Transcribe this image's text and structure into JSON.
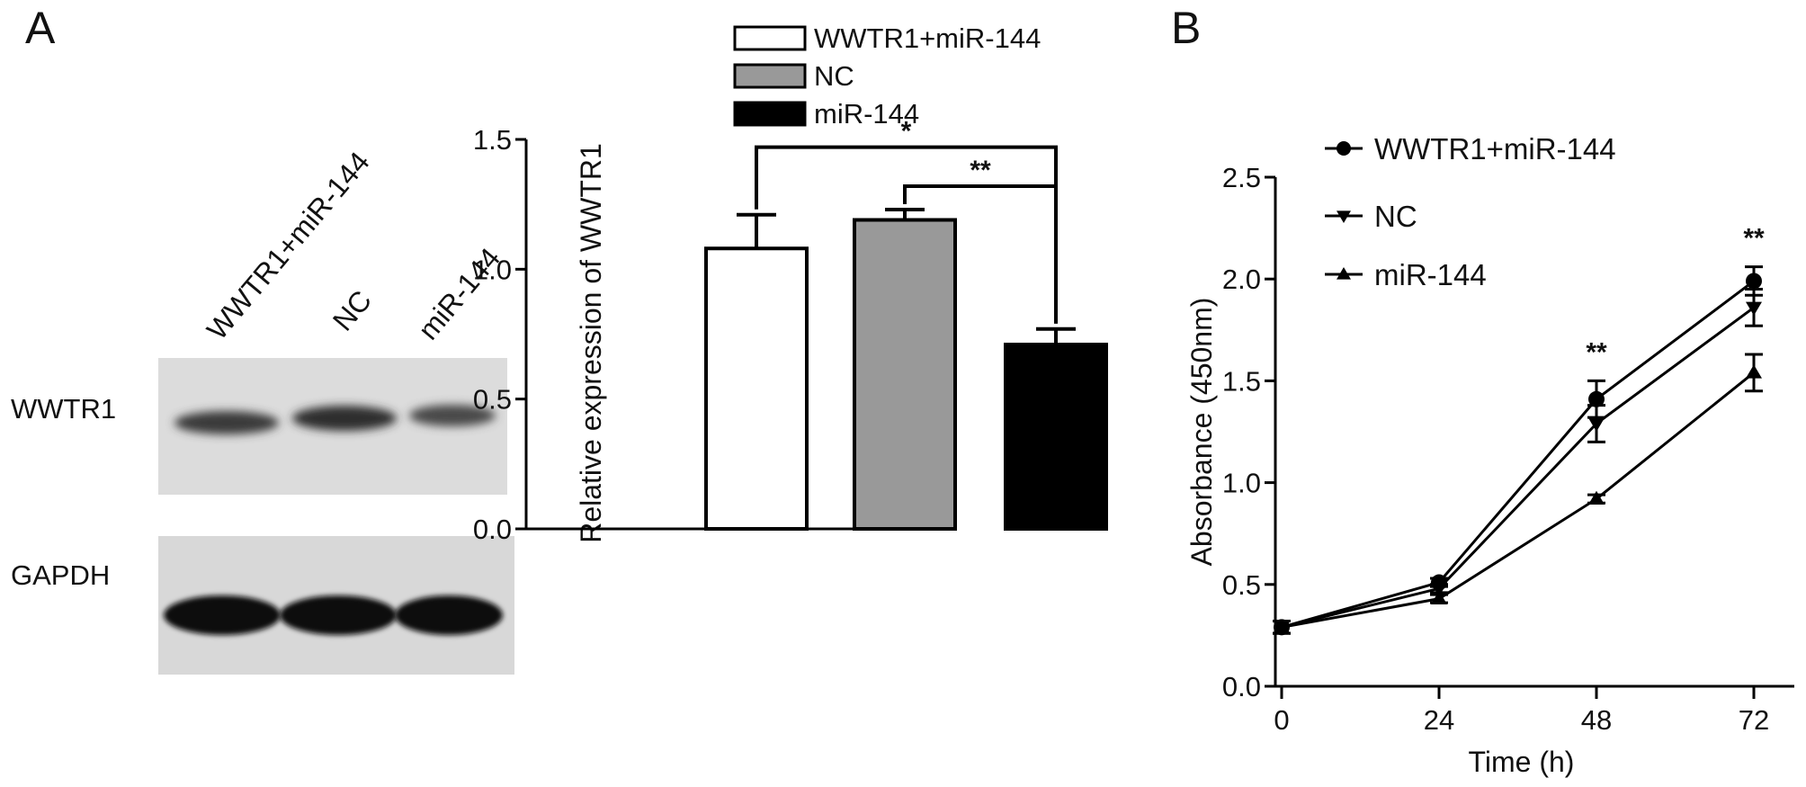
{
  "panel_a_label": "A",
  "panel_b_label": "B",
  "blot": {
    "lane_labels": [
      "WWTR1+miR-144",
      "NC",
      "miR-144"
    ],
    "row_labels": [
      "WWTR1",
      "GAPDH"
    ]
  },
  "chart_data": [
    {
      "type": "bar",
      "categories": [
        "WWTR1+miR-144",
        "NC",
        "miR-144"
      ],
      "values": [
        1.08,
        1.19,
        0.71
      ],
      "errors": [
        0.13,
        0.04,
        0.06
      ],
      "colors": [
        "#ffffff",
        "#999999",
        "#000000"
      ],
      "ylabel": "Relative expression of WWTR1",
      "ylim": [
        0,
        1.5
      ],
      "yticks": [
        "0.0",
        "0.5",
        "1.0",
        "1.5"
      ],
      "legend": [
        "WWTR1+miR-144",
        "NC",
        "miR-144"
      ],
      "legend_position": "top",
      "significance": [
        {
          "between": [
            "WWTR1+miR-144",
            "miR-144"
          ],
          "label": "*"
        },
        {
          "between": [
            "NC",
            "miR-144"
          ],
          "label": "**"
        }
      ]
    },
    {
      "type": "line",
      "xlabel": "Time (h)",
      "ylabel": "Absorbance (450nm)",
      "x": [
        0,
        24,
        48,
        72
      ],
      "xticks": [
        "0",
        "24",
        "48",
        "72"
      ],
      "ylim": [
        0,
        2.5
      ],
      "yticks": [
        "0.0",
        "0.5",
        "1.0",
        "1.5",
        "2.0",
        "2.5"
      ],
      "series": [
        {
          "name": "WWTR1+miR-144",
          "marker": "circle",
          "values": [
            0.29,
            0.51,
            1.41,
            1.99
          ],
          "errors": [
            0.03,
            0.02,
            0.09,
            0.07
          ]
        },
        {
          "name": "NC",
          "marker": "triangle-down",
          "values": [
            0.29,
            0.48,
            1.29,
            1.86
          ],
          "errors": [
            0.03,
            0.02,
            0.09,
            0.09
          ]
        },
        {
          "name": "miR-144",
          "marker": "triangle-up",
          "values": [
            0.29,
            0.43,
            0.92,
            1.54
          ],
          "errors": [
            0.03,
            0.02,
            0.02,
            0.09
          ]
        }
      ],
      "legend_position": "top-left",
      "significance": [
        {
          "x": 48,
          "label": "**"
        },
        {
          "x": 72,
          "label": "**"
        }
      ]
    }
  ]
}
